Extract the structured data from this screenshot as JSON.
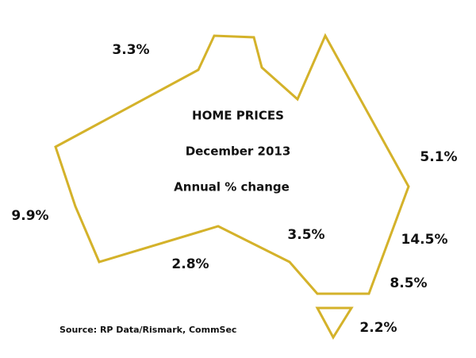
{
  "title": "HOME PRICES",
  "subtitle": "December 2013",
  "caption": "Annual % change",
  "regions": [
    {
      "label": "3.3%"
    },
    {
      "label": "9.9%"
    },
    {
      "label": "2.8%"
    },
    {
      "label": "3.5%"
    },
    {
      "label": "5.1%"
    },
    {
      "label": "14.5%"
    },
    {
      "label": "8.5%"
    },
    {
      "label": "2.2%"
    }
  ],
  "source": "Source: RP Data/Rismark, CommSec"
}
